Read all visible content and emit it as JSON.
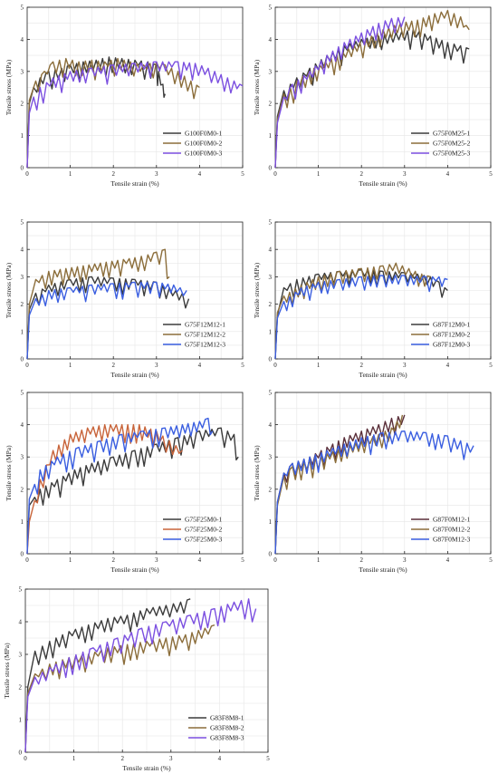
{
  "figure": {
    "background": "#ffffff"
  },
  "chart_data": [
    {
      "type": "line",
      "xlabel": "Tensile strain (%)",
      "ylabel": "Tensile stress (MPa)",
      "xlim": [
        0,
        5
      ],
      "ylim": [
        0,
        5
      ],
      "xticks": [
        "0",
        "1",
        "2",
        "3",
        "4",
        "5"
      ],
      "yticks": [
        "0",
        "1",
        "2",
        "3",
        "4",
        "5"
      ],
      "grid": true,
      "legend_position": "bottom-right",
      "series": [
        {
          "name": "G100F0M0-1",
          "color": "#3b3b3b",
          "x": [
            0,
            0.05,
            0.15,
            0.3,
            0.5,
            0.8,
            1.0,
            1.3,
            1.6,
            1.9,
            2.2,
            2.5,
            2.8,
            3.0,
            3.05,
            3.15,
            3.2
          ],
          "y": [
            0,
            2.0,
            2.5,
            2.8,
            3.0,
            3.1,
            3.2,
            3.3,
            3.35,
            3.45,
            3.4,
            3.35,
            3.3,
            3.2,
            3.0,
            2.6,
            2.3
          ]
        },
        {
          "name": "G100F0M0-2",
          "color": "#8b6d3a",
          "x": [
            0,
            0.05,
            0.2,
            0.4,
            0.6,
            0.9,
            1.2,
            1.5,
            1.8,
            2.1,
            2.4,
            2.7,
            3.0,
            3.2,
            3.5,
            3.8,
            4.0
          ],
          "y": [
            0,
            2.1,
            2.7,
            3.0,
            3.3,
            3.4,
            3.3,
            3.35,
            3.3,
            3.4,
            3.3,
            3.2,
            3.3,
            3.2,
            3.0,
            2.7,
            2.5
          ]
        },
        {
          "name": "G100F0M0-3",
          "color": "#7b4fe0",
          "x": [
            0,
            0.05,
            0.15,
            0.3,
            0.6,
            1.0,
            1.5,
            2.0,
            2.5,
            3.0,
            3.5,
            3.9,
            4.2,
            4.5,
            4.8,
            5.0
          ],
          "y": [
            0,
            1.7,
            2.2,
            2.5,
            2.8,
            3.0,
            3.1,
            3.2,
            3.25,
            3.3,
            3.3,
            3.25,
            3.1,
            2.9,
            2.7,
            2.55
          ]
        }
      ]
    },
    {
      "type": "line",
      "xlabel": "Tensile strain (%)",
      "ylabel": "Tensile stress (MPa)",
      "xlim": [
        0,
        5
      ],
      "ylim": [
        0,
        5
      ],
      "xticks": [
        "0",
        "1",
        "2",
        "3",
        "4",
        "5"
      ],
      "yticks": [
        "0",
        "1",
        "2",
        "3",
        "4",
        "5"
      ],
      "grid": true,
      "legend_position": "bottom-right",
      "series": [
        {
          "name": "G75F0M25-1",
          "color": "#3b3b3b",
          "x": [
            0,
            0.05,
            0.2,
            0.5,
            0.8,
            1.2,
            1.6,
            2.0,
            2.4,
            2.8,
            3.2,
            3.6,
            4.0,
            4.3,
            4.5
          ],
          "y": [
            0,
            1.6,
            2.4,
            2.8,
            3.1,
            3.5,
            3.8,
            4.0,
            4.1,
            4.2,
            4.3,
            4.1,
            3.9,
            3.8,
            3.7
          ]
        },
        {
          "name": "G75F0M25-2",
          "color": "#8b6d3a",
          "x": [
            0,
            0.05,
            0.2,
            0.5,
            0.9,
            1.3,
            1.7,
            2.1,
            2.5,
            2.9,
            3.3,
            3.7,
            4.0,
            4.3,
            4.5
          ],
          "y": [
            0,
            1.5,
            2.3,
            2.7,
            3.1,
            3.4,
            3.7,
            4.0,
            4.3,
            4.5,
            4.6,
            4.8,
            4.9,
            4.7,
            4.3
          ]
        },
        {
          "name": "G75F0M25-3",
          "color": "#7b4fe0",
          "x": [
            0,
            0.05,
            0.2,
            0.4,
            0.8,
            1.2,
            1.6,
            2.0,
            2.4,
            2.7,
            3.0
          ],
          "y": [
            0,
            1.4,
            2.2,
            2.6,
            3.0,
            3.5,
            3.9,
            4.2,
            4.5,
            4.65,
            4.7
          ]
        }
      ]
    },
    {
      "type": "line",
      "xlabel": "Tensile strain (%)",
      "ylabel": "Tensile stress (MPa)",
      "xlim": [
        0,
        5
      ],
      "ylim": [
        0,
        5
      ],
      "xticks": [
        "0",
        "1",
        "2",
        "3",
        "4",
        "5"
      ],
      "yticks": [
        "0",
        "1",
        "2",
        "3",
        "4",
        "5"
      ],
      "grid": true,
      "legend_position": "bottom-right",
      "series": [
        {
          "name": "G75F12M12-1",
          "color": "#3b3b3b",
          "x": [
            0,
            0.05,
            0.2,
            0.5,
            1.0,
            1.5,
            2.0,
            2.5,
            3.0,
            3.3,
            3.6,
            3.75
          ],
          "y": [
            0,
            1.8,
            2.4,
            2.7,
            2.9,
            3.0,
            2.95,
            2.9,
            2.8,
            2.6,
            2.4,
            2.2
          ]
        },
        {
          "name": "G75F12M12-2",
          "color": "#8b6d3a",
          "x": [
            0,
            0.05,
            0.2,
            0.5,
            0.9,
            1.3,
            1.7,
            2.1,
            2.5,
            2.8,
            3.0,
            3.2,
            3.3
          ],
          "y": [
            0,
            2.0,
            2.9,
            3.2,
            3.3,
            3.4,
            3.5,
            3.6,
            3.7,
            3.8,
            3.9,
            4.0,
            3.0
          ]
        },
        {
          "name": "G75F12M12-3",
          "color": "#3a5ee0",
          "x": [
            0,
            0.05,
            0.2,
            0.5,
            1.0,
            1.5,
            2.0,
            2.5,
            3.0,
            3.4,
            3.7
          ],
          "y": [
            0,
            1.6,
            2.2,
            2.5,
            2.6,
            2.7,
            2.75,
            2.8,
            2.8,
            2.7,
            2.5
          ]
        }
      ]
    },
    {
      "type": "line",
      "xlabel": "Tensile strain (%)",
      "ylabel": "Tensile stress (MPa)",
      "xlim": [
        0,
        5
      ],
      "ylim": [
        0,
        5
      ],
      "xticks": [
        "0",
        "1",
        "2",
        "3",
        "4",
        "5"
      ],
      "yticks": [
        "0",
        "1",
        "2",
        "3",
        "4",
        "5"
      ],
      "grid": true,
      "legend_position": "bottom-right",
      "series": [
        {
          "name": "G87F12M0-1",
          "color": "#3b3b3b",
          "x": [
            0,
            0.05,
            0.2,
            0.5,
            1.0,
            1.5,
            2.0,
            2.5,
            3.0,
            3.3,
            3.6,
            3.8,
            4.0
          ],
          "y": [
            0,
            1.6,
            2.6,
            2.9,
            3.1,
            3.2,
            3.25,
            3.2,
            3.15,
            3.1,
            3.0,
            2.8,
            2.5
          ]
        },
        {
          "name": "G87F12M0-2",
          "color": "#8b6d3a",
          "x": [
            0,
            0.05,
            0.2,
            0.6,
            1.0,
            1.5,
            2.0,
            2.5,
            2.8,
            3.1,
            3.4,
            3.6
          ],
          "y": [
            0,
            1.7,
            2.3,
            2.7,
            3.0,
            3.2,
            3.3,
            3.4,
            3.5,
            3.3,
            3.1,
            3.0
          ]
        },
        {
          "name": "G87F12M0-3",
          "color": "#3a5ee0",
          "x": [
            0,
            0.05,
            0.2,
            0.6,
            1.0,
            1.5,
            2.0,
            2.5,
            3.0,
            3.5,
            3.8,
            4.0
          ],
          "y": [
            0,
            1.5,
            2.1,
            2.6,
            2.8,
            2.9,
            3.0,
            3.05,
            3.05,
            3.0,
            3.0,
            2.9
          ]
        }
      ]
    },
    {
      "type": "line",
      "xlabel": "Tensile strain (%)",
      "ylabel": "Tensile stress (MPa)",
      "xlim": [
        0,
        5
      ],
      "ylim": [
        0,
        5
      ],
      "xticks": [
        "0",
        "1",
        "2",
        "3",
        "4",
        "5"
      ],
      "yticks": [
        "0",
        "1",
        "2",
        "3",
        "4",
        "5"
      ],
      "grid": true,
      "legend_position": "bottom-right",
      "series": [
        {
          "name": "G75F25M0-1",
          "color": "#3b3b3b",
          "x": [
            0,
            0.05,
            0.3,
            0.7,
            1.1,
            1.5,
            2.0,
            2.5,
            3.0,
            3.5,
            4.0,
            4.5,
            4.8,
            4.9
          ],
          "y": [
            0,
            1.5,
            2.0,
            2.3,
            2.6,
            2.8,
            3.0,
            3.2,
            3.4,
            3.6,
            3.8,
            3.9,
            3.7,
            3.0
          ]
        },
        {
          "name": "G75F25M0-2",
          "color": "#c8643a",
          "x": [
            0,
            0.05,
            0.3,
            0.6,
            1.0,
            1.4,
            1.8,
            2.2,
            2.6,
            3.0,
            3.3,
            3.6
          ],
          "y": [
            0,
            1.0,
            2.3,
            3.2,
            3.7,
            3.9,
            4.0,
            4.0,
            4.0,
            3.8,
            3.5,
            3.2
          ]
        },
        {
          "name": "G75F25M0-3",
          "color": "#3a5ee0",
          "x": [
            0,
            0.05,
            0.3,
            0.7,
            1.2,
            1.7,
            2.2,
            2.7,
            3.2,
            3.6,
            4.0,
            4.2,
            4.3
          ],
          "y": [
            0,
            1.7,
            2.6,
            3.0,
            3.3,
            3.5,
            3.7,
            3.8,
            3.9,
            4.0,
            4.1,
            4.2,
            3.8
          ]
        }
      ]
    },
    {
      "type": "line",
      "xlabel": "Tensile strain (%)",
      "ylabel": "Tensile stress (MPa)",
      "xlim": [
        0,
        5
      ],
      "ylim": [
        0,
        5
      ],
      "xticks": [
        "0",
        "1",
        "2",
        "3",
        "4",
        "5"
      ],
      "yticks": [
        "0",
        "1",
        "2",
        "3",
        "4",
        "5"
      ],
      "grid": true,
      "legend_position": "bottom-right",
      "series": [
        {
          "name": "G87F0M12-1",
          "color": "#5a2f3a",
          "x": [
            0,
            0.05,
            0.2,
            0.4,
            0.8,
            1.2,
            1.6,
            2.0,
            2.4,
            2.7,
            3.0
          ],
          "y": [
            0,
            1.6,
            2.5,
            2.8,
            3.0,
            3.3,
            3.6,
            3.8,
            4.0,
            4.2,
            4.3
          ]
        },
        {
          "name": "G87F0M12-2",
          "color": "#8b6d3a",
          "x": [
            0,
            0.05,
            0.2,
            0.4,
            0.8,
            1.2,
            1.6,
            2.0,
            2.4,
            2.7,
            2.95
          ],
          "y": [
            0,
            1.5,
            2.4,
            2.7,
            2.9,
            3.1,
            3.3,
            3.5,
            3.7,
            3.9,
            4.3
          ]
        },
        {
          "name": "G87F0M12-3",
          "color": "#3a5ee0",
          "x": [
            0,
            0.05,
            0.2,
            0.4,
            0.8,
            1.2,
            1.6,
            2.0,
            2.5,
            3.0,
            3.5,
            4.0,
            4.3,
            4.6
          ],
          "y": [
            0,
            1.6,
            2.5,
            2.8,
            3.0,
            3.2,
            3.4,
            3.6,
            3.75,
            3.8,
            3.75,
            3.65,
            3.5,
            3.35
          ]
        }
      ]
    },
    {
      "type": "line",
      "xlabel": "Tensile strain (%)",
      "ylabel": "Tensile stress (MPa)",
      "xlim": [
        0,
        5
      ],
      "ylim": [
        0,
        5
      ],
      "xticks": [
        "0",
        "1",
        "2",
        "3",
        "4",
        "5"
      ],
      "yticks": [
        "0",
        "1",
        "2",
        "3",
        "4",
        "5"
      ],
      "grid": true,
      "legend_position": "bottom-right",
      "series": [
        {
          "name": "G83F8M8-1",
          "color": "#3b3b3b",
          "x": [
            0,
            0.05,
            0.2,
            0.5,
            0.9,
            1.3,
            1.7,
            2.1,
            2.5,
            2.9,
            3.2,
            3.4
          ],
          "y": [
            0,
            2.0,
            3.1,
            3.4,
            3.7,
            3.9,
            4.1,
            4.2,
            4.4,
            4.5,
            4.6,
            4.7
          ]
        },
        {
          "name": "G83F8M8-2",
          "color": "#8b6d3a",
          "x": [
            0,
            0.05,
            0.2,
            0.5,
            0.9,
            1.3,
            1.7,
            2.1,
            2.5,
            2.9,
            3.3,
            3.7,
            3.9
          ],
          "y": [
            0,
            1.8,
            2.4,
            2.7,
            2.9,
            3.0,
            3.2,
            3.3,
            3.4,
            3.5,
            3.6,
            3.8,
            3.9
          ]
        },
        {
          "name": "G83F8M8-3",
          "color": "#7b4fe0",
          "x": [
            0,
            0.05,
            0.2,
            0.5,
            0.9,
            1.4,
            1.9,
            2.4,
            2.9,
            3.4,
            3.9,
            4.3,
            4.6,
            4.75
          ],
          "y": [
            0,
            1.7,
            2.3,
            2.6,
            2.9,
            3.2,
            3.5,
            3.8,
            4.0,
            4.2,
            4.4,
            4.6,
            4.7,
            4.4
          ]
        }
      ]
    }
  ]
}
